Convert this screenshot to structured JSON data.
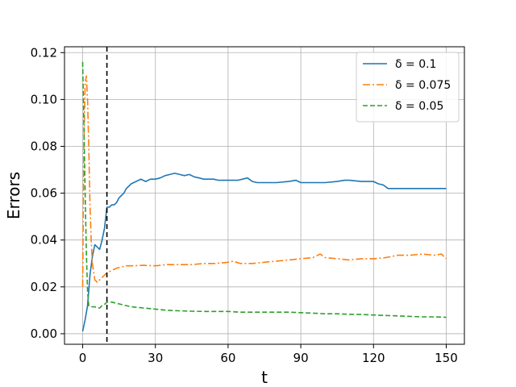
{
  "chart_data": {
    "type": "line",
    "title": "",
    "xlabel": "t",
    "ylabel": "Errors",
    "xlim": [
      -7.5,
      157.5
    ],
    "ylim": [
      -0.0045,
      0.1225
    ],
    "xticks": [
      0,
      30,
      60,
      90,
      120,
      150
    ],
    "xtick_labels": [
      "0",
      "30",
      "60",
      "90",
      "120",
      "150"
    ],
    "yticks": [
      0.0,
      0.02,
      0.04,
      0.06,
      0.08,
      0.1,
      0.12
    ],
    "ytick_labels": [
      "0.00",
      "0.02",
      "0.04",
      "0.06",
      "0.08",
      "0.10",
      "0.12"
    ],
    "grid": true,
    "legend_position": "top-right",
    "vline": {
      "x": 10,
      "color": "#000000",
      "style": "dashed"
    },
    "series": [
      {
        "name": "δ = 0.1",
        "legend_label": "δ = 0.1",
        "color": "#1f77b4",
        "style": "solid",
        "x": [
          0,
          1,
          2,
          3,
          4,
          5,
          6,
          7,
          8,
          9,
          10,
          11,
          12,
          13,
          14,
          15,
          16,
          17,
          18,
          19,
          20,
          22,
          24,
          26,
          28,
          30,
          32,
          34,
          36,
          38,
          40,
          42,
          44,
          46,
          48,
          50,
          52,
          54,
          56,
          58,
          60,
          62,
          64,
          66,
          68,
          70,
          72,
          75,
          80,
          85,
          88,
          90,
          95,
          100,
          105,
          108,
          110,
          115,
          120,
          122,
          124,
          126,
          130,
          135,
          140,
          145,
          150
        ],
        "values": [
          0.001,
          0.006,
          0.012,
          0.025,
          0.033,
          0.038,
          0.037,
          0.036,
          0.04,
          0.045,
          0.054,
          0.054,
          0.055,
          0.055,
          0.056,
          0.058,
          0.059,
          0.06,
          0.062,
          0.063,
          0.064,
          0.065,
          0.066,
          0.065,
          0.066,
          0.066,
          0.0665,
          0.0675,
          0.068,
          0.0685,
          0.068,
          0.0675,
          0.068,
          0.067,
          0.0665,
          0.066,
          0.066,
          0.066,
          0.0655,
          0.0655,
          0.0655,
          0.0655,
          0.0655,
          0.066,
          0.0665,
          0.065,
          0.0645,
          0.0645,
          0.0645,
          0.065,
          0.0655,
          0.0645,
          0.0645,
          0.0645,
          0.065,
          0.0655,
          0.0655,
          0.065,
          0.065,
          0.064,
          0.0635,
          0.062,
          0.062,
          0.062,
          0.062,
          0.062,
          0.062
        ]
      },
      {
        "name": "δ = 0.075",
        "legend_label": "δ = 0.075",
        "color": "#ff7f0e",
        "style": "dashdot",
        "x": [
          0,
          0.5,
          1,
          1.5,
          2,
          2.5,
          3,
          3.5,
          4,
          5,
          6,
          7,
          8,
          9,
          10,
          12,
          14,
          16,
          18,
          20,
          25,
          30,
          35,
          40,
          45,
          50,
          55,
          60,
          62,
          65,
          70,
          75,
          80,
          85,
          90,
          95,
          98,
          100,
          105,
          110,
          115,
          120,
          125,
          130,
          135,
          140,
          145,
          148,
          150
        ],
        "values": [
          0.02,
          0.08,
          0.107,
          0.11,
          0.1,
          0.08,
          0.055,
          0.04,
          0.03,
          0.023,
          0.022,
          0.023,
          0.024,
          0.025,
          0.026,
          0.027,
          0.028,
          0.0285,
          0.029,
          0.029,
          0.0292,
          0.029,
          0.0295,
          0.0295,
          0.0295,
          0.03,
          0.03,
          0.0305,
          0.031,
          0.03,
          0.03,
          0.0305,
          0.031,
          0.0315,
          0.032,
          0.0325,
          0.034,
          0.0325,
          0.032,
          0.0315,
          0.032,
          0.032,
          0.0325,
          0.0335,
          0.0335,
          0.034,
          0.0335,
          0.034,
          0.032
        ]
      },
      {
        "name": "δ = 0.05",
        "legend_label": "δ = 0.05",
        "color": "#2ca02c",
        "style": "dashed",
        "x": [
          0,
          0.5,
          1,
          1.5,
          2,
          2.5,
          3,
          4,
          5,
          6,
          7,
          8,
          9,
          10,
          12,
          14,
          16,
          18,
          20,
          25,
          30,
          35,
          40,
          45,
          50,
          55,
          60,
          65,
          70,
          75,
          80,
          85,
          90,
          95,
          100,
          105,
          110,
          115,
          120,
          125,
          130,
          135,
          140,
          145,
          150
        ],
        "values": [
          0.116,
          0.09,
          0.06,
          0.035,
          0.018,
          0.012,
          0.0115,
          0.0115,
          0.0115,
          0.011,
          0.011,
          0.012,
          0.0125,
          0.0135,
          0.0135,
          0.013,
          0.0125,
          0.012,
          0.0115,
          0.011,
          0.0105,
          0.01,
          0.0098,
          0.0096,
          0.0095,
          0.0095,
          0.0095,
          0.0092,
          0.0092,
          0.0092,
          0.0092,
          0.0092,
          0.009,
          0.0088,
          0.0085,
          0.0085,
          0.0083,
          0.0082,
          0.008,
          0.0078,
          0.0076,
          0.0074,
          0.0072,
          0.0072,
          0.007
        ]
      }
    ]
  }
}
